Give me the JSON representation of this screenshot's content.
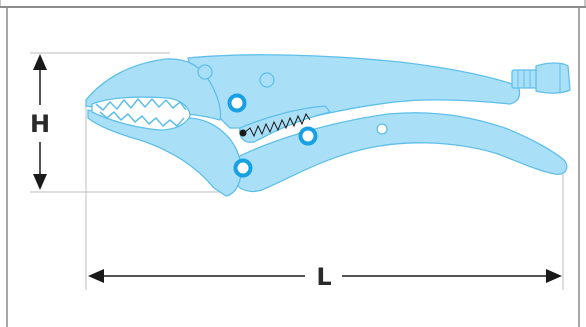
{
  "dimensions": {
    "height_label": "H",
    "length_label": "L"
  },
  "colors": {
    "tool_fill": "#a9e0f8",
    "tool_stroke": "#5fbfe9",
    "accent_blue": "#18a0e4",
    "line": "#1a1a1a",
    "guide": "#bdbdbd",
    "frame": "#8c8c8c"
  },
  "icons": {
    "tool": "locking-pliers-icon",
    "pivot": "pivot-bolt-icon",
    "spring": "spring-icon"
  }
}
